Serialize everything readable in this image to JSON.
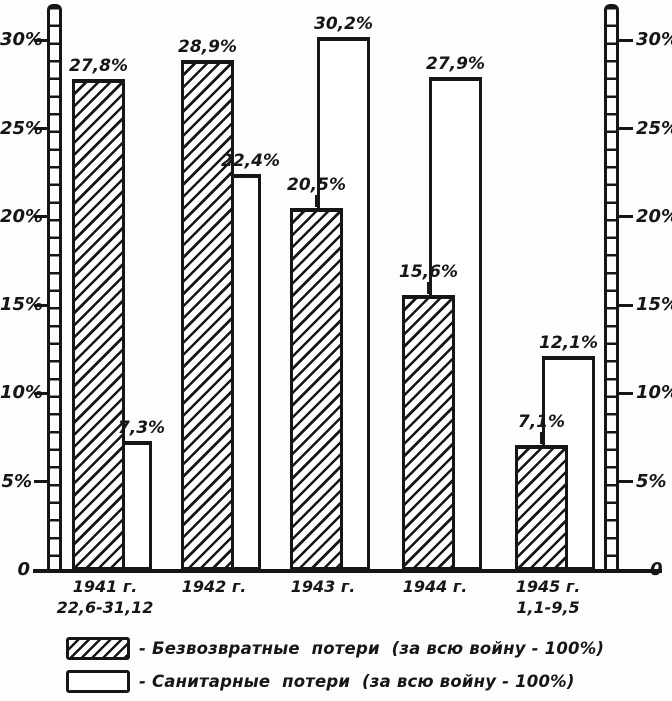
{
  "chart_data": {
    "type": "bar",
    "title": "",
    "categories": [
      "1941 г.",
      "1942 г.",
      "1943 г.",
      "1944 г.",
      "1945 г."
    ],
    "category_subtitles": [
      "22,6-31,12",
      "",
      "",
      "",
      "1,1-9,5"
    ],
    "series": [
      {
        "name": "Безвозвратные потери (за всю войну - 100%)",
        "pattern": "diagonal-hatch",
        "values": [
          27.8,
          28.9,
          20.5,
          15.6,
          7.1
        ],
        "labels": [
          "27,8%",
          "28,9%",
          "20,5%",
          "15,6%",
          "7,1%"
        ],
        "connectors": [
          false,
          false,
          true,
          true,
          true
        ]
      },
      {
        "name": "Санитарные потери (за всю войну - 100%)",
        "pattern": "plain-white",
        "values": [
          7.3,
          22.4,
          30.2,
          27.9,
          12.1
        ],
        "labels": [
          "7,3%",
          "22,4%",
          "30,2%",
          "27,9%",
          "12,1%"
        ],
        "connectors": [
          false,
          false,
          false,
          false,
          false
        ]
      }
    ],
    "ylim": [
      0,
      32
    ],
    "yticks": [
      0,
      5,
      10,
      15,
      20,
      25,
      30
    ],
    "ytick_labels": [
      "0",
      "5%",
      "10%",
      "15%",
      "20%",
      "25%",
      "30%"
    ],
    "axis_sides": "both",
    "axis_style": "ladder",
    "grid": false,
    "legend_position": "bottom"
  },
  "legend": {
    "items": [
      {
        "swatch": "hatched",
        "label": "- Безвозвратные  потери  (за всю войну - 100%)"
      },
      {
        "swatch": "white",
        "label": "- Санитарные  потери  (за всю войну - 100%)"
      }
    ]
  },
  "colors": {
    "ink": "#161616",
    "paper": "#fdfdfb"
  }
}
